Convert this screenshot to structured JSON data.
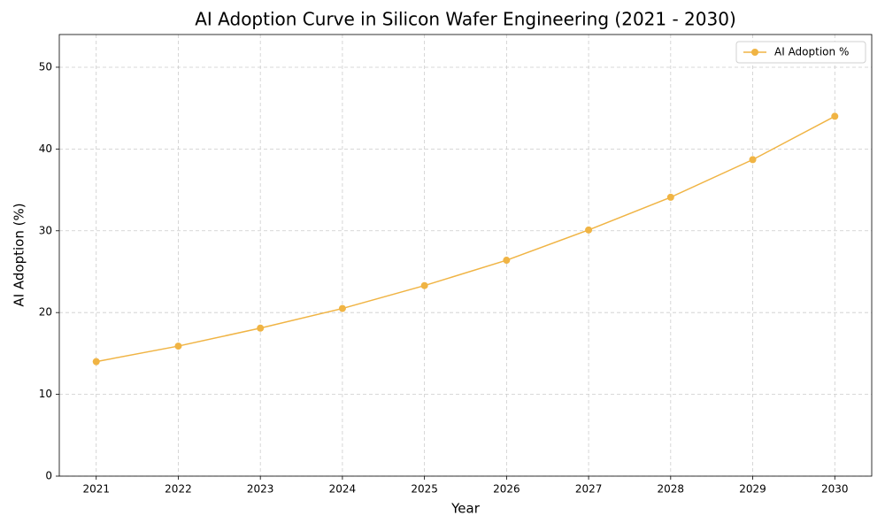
{
  "chart_data": {
    "type": "line",
    "title": "AI Adoption Curve in Silicon Wafer Engineering (2021 - 2030)",
    "x_label": "Year",
    "y_label": "AI Adoption (%)",
    "x": [
      2021,
      2022,
      2023,
      2024,
      2025,
      2026,
      2027,
      2028,
      2029,
      2030
    ],
    "series": [
      {
        "name": "AI Adoption %",
        "color": "#f0b444",
        "values": [
          14.0,
          15.9,
          18.1,
          20.5,
          23.3,
          26.4,
          30.1,
          34.1,
          38.7,
          44.0
        ]
      }
    ],
    "xlim": [
      2020.55,
      2030.45
    ],
    "xticks": [
      2021,
      2022,
      2023,
      2024,
      2025,
      2026,
      2027,
      2028,
      2029,
      2030
    ],
    "ylim": [
      0,
      54
    ],
    "yticks": [
      0,
      10,
      20,
      30,
      40,
      50
    ],
    "grid": true,
    "legend": "upper right"
  }
}
